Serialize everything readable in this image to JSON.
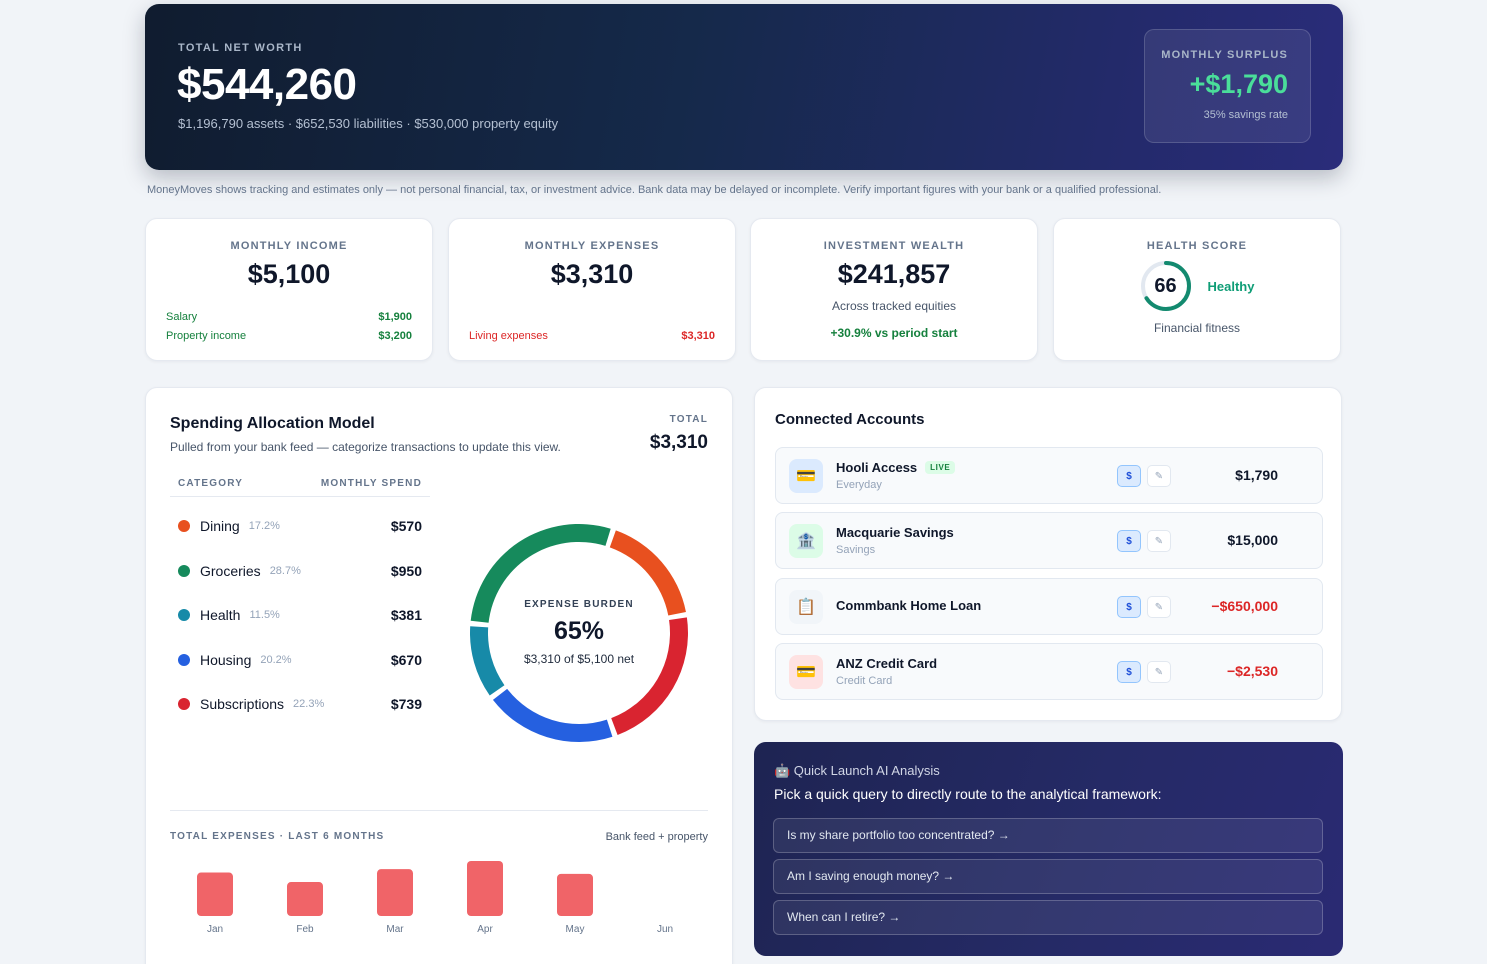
{
  "hero": {
    "eyebrow": "TOTAL NET WORTH",
    "net_worth": "$544,260",
    "summary": "$1,196,790 assets · $652,530 liabilities · $530,000 property equity",
    "surplus_label": "MONTHLY SURPLUS",
    "surplus_value": "+$1,790",
    "savings_rate": "35% savings rate"
  },
  "disclaimer": "MoneyMoves shows tracking and estimates only — not personal financial, tax, or investment advice. Bank data may be delayed or incomplete. Verify important figures with your bank or a qualified professional.",
  "stats": {
    "income": {
      "label": "MONTHLY INCOME",
      "value": "$5,100",
      "lines": [
        {
          "name": "Salary",
          "amount": "$1,900"
        },
        {
          "name": "Property income",
          "amount": "$3,200"
        }
      ]
    },
    "expenses": {
      "label": "MONTHLY EXPENSES",
      "value": "$3,310",
      "lines": [
        {
          "name": "Living expenses",
          "amount": "$3,310"
        }
      ]
    },
    "investment": {
      "label": "INVESTMENT WEALTH",
      "value": "$241,857",
      "note": "Across tracked equities",
      "change": "+30.9% vs period start"
    },
    "health": {
      "label": "HEALTH SCORE",
      "score": "66",
      "score_value": 66,
      "state": "Healthy",
      "note": "Financial fitness"
    }
  },
  "spending": {
    "title": "Spending Allocation Model",
    "subtitle": "Pulled from your bank feed — categorize transactions to update this view.",
    "total_label": "TOTAL",
    "total": "$3,310",
    "col_category": "CATEGORY",
    "col_spend": "MONTHLY SPEND",
    "categories": [
      {
        "name": "Dining",
        "pct": "17.2%",
        "amount": "$570",
        "value": 570,
        "color": "#e8501f"
      },
      {
        "name": "Groceries",
        "pct": "28.7%",
        "amount": "$950",
        "value": 950,
        "color": "#168a5c"
      },
      {
        "name": "Health",
        "pct": "11.5%",
        "amount": "$381",
        "value": 381,
        "color": "#178aa8"
      },
      {
        "name": "Housing",
        "pct": "20.2%",
        "amount": "$670",
        "value": 670,
        "color": "#2560e0"
      },
      {
        "name": "Subscriptions",
        "pct": "22.3%",
        "amount": "$739",
        "value": 739,
        "color": "#d92430"
      }
    ],
    "burden_label": "EXPENSE BURDEN",
    "burden_value": "65%",
    "burden_sub": "$3,310 of $5,100 net",
    "history_label": "TOTAL EXPENSES · LAST 6 MONTHS",
    "history_source": "Bank feed + property"
  },
  "chart_data": {
    "type": "bar",
    "categories": [
      "Jan",
      "Feb",
      "Mar",
      "Apr",
      "May",
      "Jun"
    ],
    "values": [
      3200,
      2500,
      3450,
      4050,
      3100,
      0
    ],
    "bar_color": "#f06468"
  },
  "accounts": {
    "title": "Connected Accounts",
    "live_badge": "LIVE",
    "sync_glyph": "$",
    "edit_glyph": "✎",
    "items": [
      {
        "name": "Hooli Access",
        "type": "Everyday",
        "balance": "$1,790",
        "icon": "💳",
        "icon_name": "card-icon",
        "live": true,
        "negative": false
      },
      {
        "name": "Macquarie Savings",
        "type": "Savings",
        "balance": "$15,000",
        "icon": "🏦",
        "icon_name": "bank-icon",
        "live": false,
        "negative": false
      },
      {
        "name": "Commbank Home Loan",
        "type": "",
        "balance": "−$650,000",
        "icon": "📋",
        "icon_name": "clipboard-icon",
        "live": false,
        "negative": true
      },
      {
        "name": "ANZ Credit Card",
        "type": "Credit Card",
        "balance": "−$2,530",
        "icon": "💳",
        "icon_name": "credit-card-icon",
        "live": false,
        "negative": true
      }
    ]
  },
  "ai": {
    "heading": "🤖 Quick Launch AI Analysis",
    "prompt": "Pick a quick query to directly route to the analytical framework:",
    "queries": [
      "Is my share portfolio too concentrated? →",
      "Am I saving enough money? →",
      "When can I retire? →"
    ]
  }
}
